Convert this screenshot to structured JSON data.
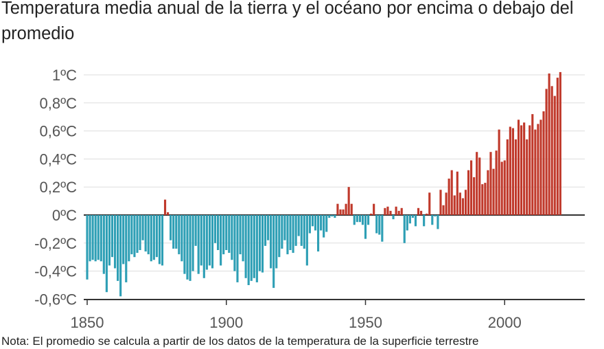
{
  "chart_data": {
    "type": "bar",
    "title": "Temperatura media anual de la tierra y el océano por encima o debajo del promedio",
    "note": "Nota: El promedio se calcula a partir de los datos de la temperatura de la superficie terrestre",
    "ylim": [
      -0.6,
      1.05
    ],
    "y_ticks": [
      {
        "value": 1.0,
        "label": "1ºC"
      },
      {
        "value": 0.8,
        "label": "0,8ºC"
      },
      {
        "value": 0.6,
        "label": "0,6ºC"
      },
      {
        "value": 0.4,
        "label": "0,4ºC"
      },
      {
        "value": 0.2,
        "label": "0,2ºC"
      },
      {
        "value": 0.0,
        "label": "0ºC"
      },
      {
        "value": -0.2,
        "label": "-0,2ºC"
      },
      {
        "value": -0.4,
        "label": "-0,4ºC"
      },
      {
        "value": -0.6,
        "label": "-0,6ºC"
      }
    ],
    "x_ticks": [
      {
        "value": 1850,
        "label": "1850"
      },
      {
        "value": 1900,
        "label": "1900"
      },
      {
        "value": 1950,
        "label": "1950"
      },
      {
        "value": 2000,
        "label": "2000"
      }
    ],
    "xlim": [
      1850,
      2020
    ],
    "grid": true,
    "colors": {
      "positive": "#c0392b",
      "negative": "#2e9fb5",
      "grid": "#dddddd",
      "axis": "#333333"
    },
    "years": [
      1850,
      1851,
      1852,
      1853,
      1854,
      1855,
      1856,
      1857,
      1858,
      1859,
      1860,
      1861,
      1862,
      1863,
      1864,
      1865,
      1866,
      1867,
      1868,
      1869,
      1870,
      1871,
      1872,
      1873,
      1874,
      1875,
      1876,
      1877,
      1878,
      1879,
      1880,
      1881,
      1882,
      1883,
      1884,
      1885,
      1886,
      1887,
      1888,
      1889,
      1890,
      1891,
      1892,
      1893,
      1894,
      1895,
      1896,
      1897,
      1898,
      1899,
      1900,
      1901,
      1902,
      1903,
      1904,
      1905,
      1906,
      1907,
      1908,
      1909,
      1910,
      1911,
      1912,
      1913,
      1914,
      1915,
      1916,
      1917,
      1918,
      1919,
      1920,
      1921,
      1922,
      1923,
      1924,
      1925,
      1926,
      1927,
      1928,
      1929,
      1930,
      1931,
      1932,
      1933,
      1934,
      1935,
      1936,
      1937,
      1938,
      1939,
      1940,
      1941,
      1942,
      1943,
      1944,
      1945,
      1946,
      1947,
      1948,
      1949,
      1950,
      1951,
      1952,
      1953,
      1954,
      1955,
      1956,
      1957,
      1958,
      1959,
      1960,
      1961,
      1962,
      1963,
      1964,
      1965,
      1966,
      1967,
      1968,
      1969,
      1970,
      1971,
      1972,
      1973,
      1974,
      1975,
      1976,
      1977,
      1978,
      1979,
      1980,
      1981,
      1982,
      1983,
      1984,
      1985,
      1986,
      1987,
      1988,
      1989,
      1990,
      1991,
      1992,
      1993,
      1994,
      1995,
      1996,
      1997,
      1998,
      1999,
      2000,
      2001,
      2002,
      2003,
      2004,
      2005,
      2006,
      2007,
      2008,
      2009,
      2010,
      2011,
      2012,
      2013,
      2014,
      2015,
      2016,
      2017,
      2018,
      2019,
      2020
    ],
    "values": [
      -0.46,
      -0.33,
      -0.32,
      -0.33,
      -0.32,
      -0.33,
      -0.42,
      -0.55,
      -0.36,
      -0.3,
      -0.38,
      -0.47,
      -0.58,
      -0.35,
      -0.48,
      -0.33,
      -0.28,
      -0.3,
      -0.27,
      -0.25,
      -0.18,
      -0.26,
      -0.28,
      -0.33,
      -0.32,
      -0.3,
      -0.35,
      -0.36,
      0.11,
      0.02,
      -0.18,
      -0.24,
      -0.24,
      -0.28,
      -0.33,
      -0.42,
      -0.46,
      -0.47,
      -0.4,
      -0.22,
      -0.42,
      -0.36,
      -0.45,
      -0.39,
      -0.36,
      -0.38,
      -0.2,
      -0.25,
      -0.36,
      -0.28,
      -0.25,
      -0.27,
      -0.32,
      -0.4,
      -0.48,
      -0.28,
      -0.33,
      -0.45,
      -0.5,
      -0.47,
      -0.45,
      -0.48,
      -0.4,
      -0.41,
      -0.22,
      -0.18,
      -0.38,
      -0.52,
      -0.38,
      -0.3,
      -0.24,
      -0.18,
      -0.28,
      -0.25,
      -0.27,
      -0.22,
      -0.15,
      -0.22,
      -0.24,
      -0.36,
      -0.13,
      -0.08,
      -0.11,
      -0.26,
      -0.11,
      -0.16,
      -0.12,
      -0.02,
      -0.01,
      -0.02,
      0.08,
      0.04,
      0.04,
      0.08,
      0.2,
      0.08,
      -0.07,
      -0.05,
      -0.05,
      -0.07,
      -0.17,
      -0.07,
      0.01,
      0.08,
      -0.13,
      -0.14,
      -0.19,
      0.05,
      0.06,
      0.03,
      -0.03,
      0.06,
      0.03,
      0.05,
      -0.2,
      -0.11,
      -0.06,
      -0.02,
      -0.08,
      0.05,
      0.03,
      -0.08,
      0.01,
      0.16,
      -0.07,
      -0.01,
      -0.1,
      0.18,
      0.07,
      0.16,
      0.26,
      0.32,
      0.14,
      0.31,
      0.16,
      0.12,
      0.18,
      0.32,
      0.39,
      0.27,
      0.45,
      0.41,
      0.22,
      0.23,
      0.32,
      0.45,
      0.33,
      0.46,
      0.61,
      0.38,
      0.39,
      0.54,
      0.63,
      0.62,
      0.54,
      0.68,
      0.64,
      0.66,
      0.54,
      0.64,
      0.72,
      0.61,
      0.65,
      0.68,
      0.74,
      0.9,
      1.01,
      0.92,
      0.85,
      0.98,
      1.02
    ]
  }
}
